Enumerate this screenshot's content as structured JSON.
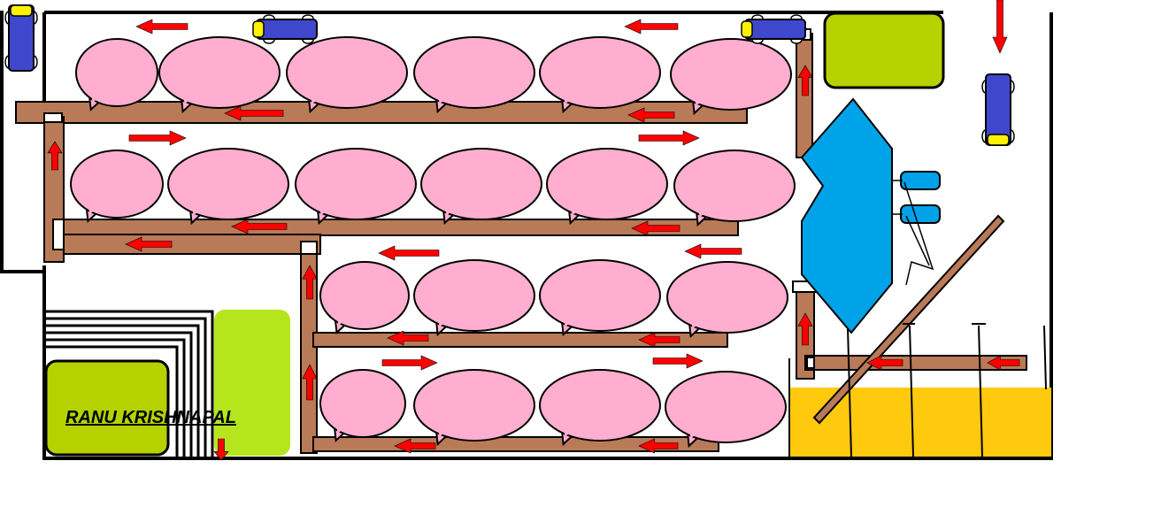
{
  "diagram": {
    "signature_text": "RANU KRISHNAPAL",
    "colors": {
      "background": "#ffffff",
      "outline": "#000000",
      "pad": "#ffaed0",
      "conveyor": "#b97a57",
      "arrow": "#ff0000",
      "green": "#b5d200",
      "lime": "#b5e61d",
      "blue_machine": "#00a2e8",
      "yellow_floor": "#ffc90e",
      "vehicle_body": "#3f48cc",
      "vehicle_cap": "#fff200"
    }
  }
}
